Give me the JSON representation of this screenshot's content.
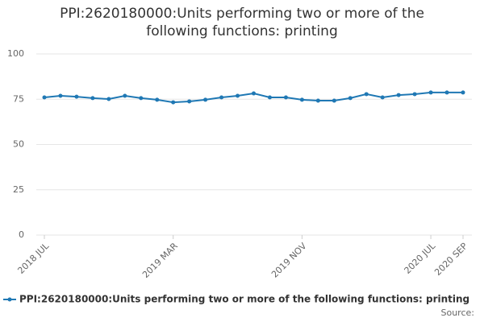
{
  "chart_data": {
    "type": "line",
    "title": "PPI:2620180000:Units performing two or more of the following functions: printing",
    "categories": [
      "2018 JUL",
      null,
      null,
      null,
      null,
      null,
      null,
      null,
      "2019 MAR",
      null,
      null,
      null,
      null,
      null,
      null,
      null,
      "2019 NOV",
      null,
      null,
      null,
      null,
      null,
      null,
      null,
      "2020 JUL",
      null,
      "2020 SEP"
    ],
    "series": [
      {
        "name": "PPI:2620180000:Units performing two or more of the following functions: printing",
        "color": "#1f78b4",
        "values": [
          76,
          76.9,
          76.4,
          75.6,
          75.1,
          76.9,
          75.6,
          74.7,
          73.3,
          73.8,
          74.7,
          76,
          76.9,
          78.2,
          76,
          76,
          74.7,
          74.2,
          74.2,
          75.6,
          77.8,
          76,
          77.3,
          77.8,
          78.7,
          78.7,
          78.7
        ]
      }
    ],
    "ylim": [
      0,
      100
    ],
    "yticks": [
      0,
      25,
      50,
      75,
      100
    ],
    "grid": true,
    "source": "Source:"
  }
}
